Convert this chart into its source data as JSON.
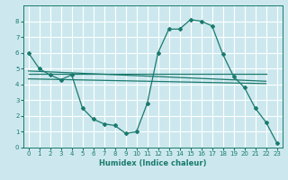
{
  "xlabel": "Humidex (Indice chaleur)",
  "bg_color": "#cce8ee",
  "grid_color": "#ffffff",
  "line_color": "#1a7a6e",
  "xlim": [
    -0.5,
    23.5
  ],
  "ylim": [
    0,
    9
  ],
  "xticks": [
    0,
    1,
    2,
    3,
    4,
    5,
    6,
    7,
    8,
    9,
    10,
    11,
    12,
    13,
    14,
    15,
    16,
    17,
    18,
    19,
    20,
    21,
    22,
    23
  ],
  "yticks": [
    0,
    1,
    2,
    3,
    4,
    5,
    6,
    7,
    8
  ],
  "main_curve": {
    "x": [
      0,
      1,
      2,
      3,
      4,
      5,
      6,
      7,
      8,
      9,
      10,
      11,
      12,
      13,
      14,
      15,
      16,
      17,
      18,
      19,
      20,
      21,
      22,
      23
    ],
    "y": [
      6.0,
      5.0,
      4.6,
      4.3,
      4.6,
      2.5,
      1.8,
      1.5,
      1.4,
      0.9,
      1.0,
      2.8,
      6.0,
      7.5,
      7.5,
      8.1,
      8.0,
      7.7,
      5.9,
      4.5,
      3.8,
      2.5,
      1.6,
      0.3
    ]
  },
  "line1": {
    "x": [
      0,
      22
    ],
    "y": [
      4.65,
      4.65
    ]
  },
  "line2": {
    "x": [
      0,
      22
    ],
    "y": [
      4.85,
      4.2
    ]
  },
  "line3": {
    "x": [
      0,
      22
    ],
    "y": [
      4.35,
      4.05
    ]
  }
}
